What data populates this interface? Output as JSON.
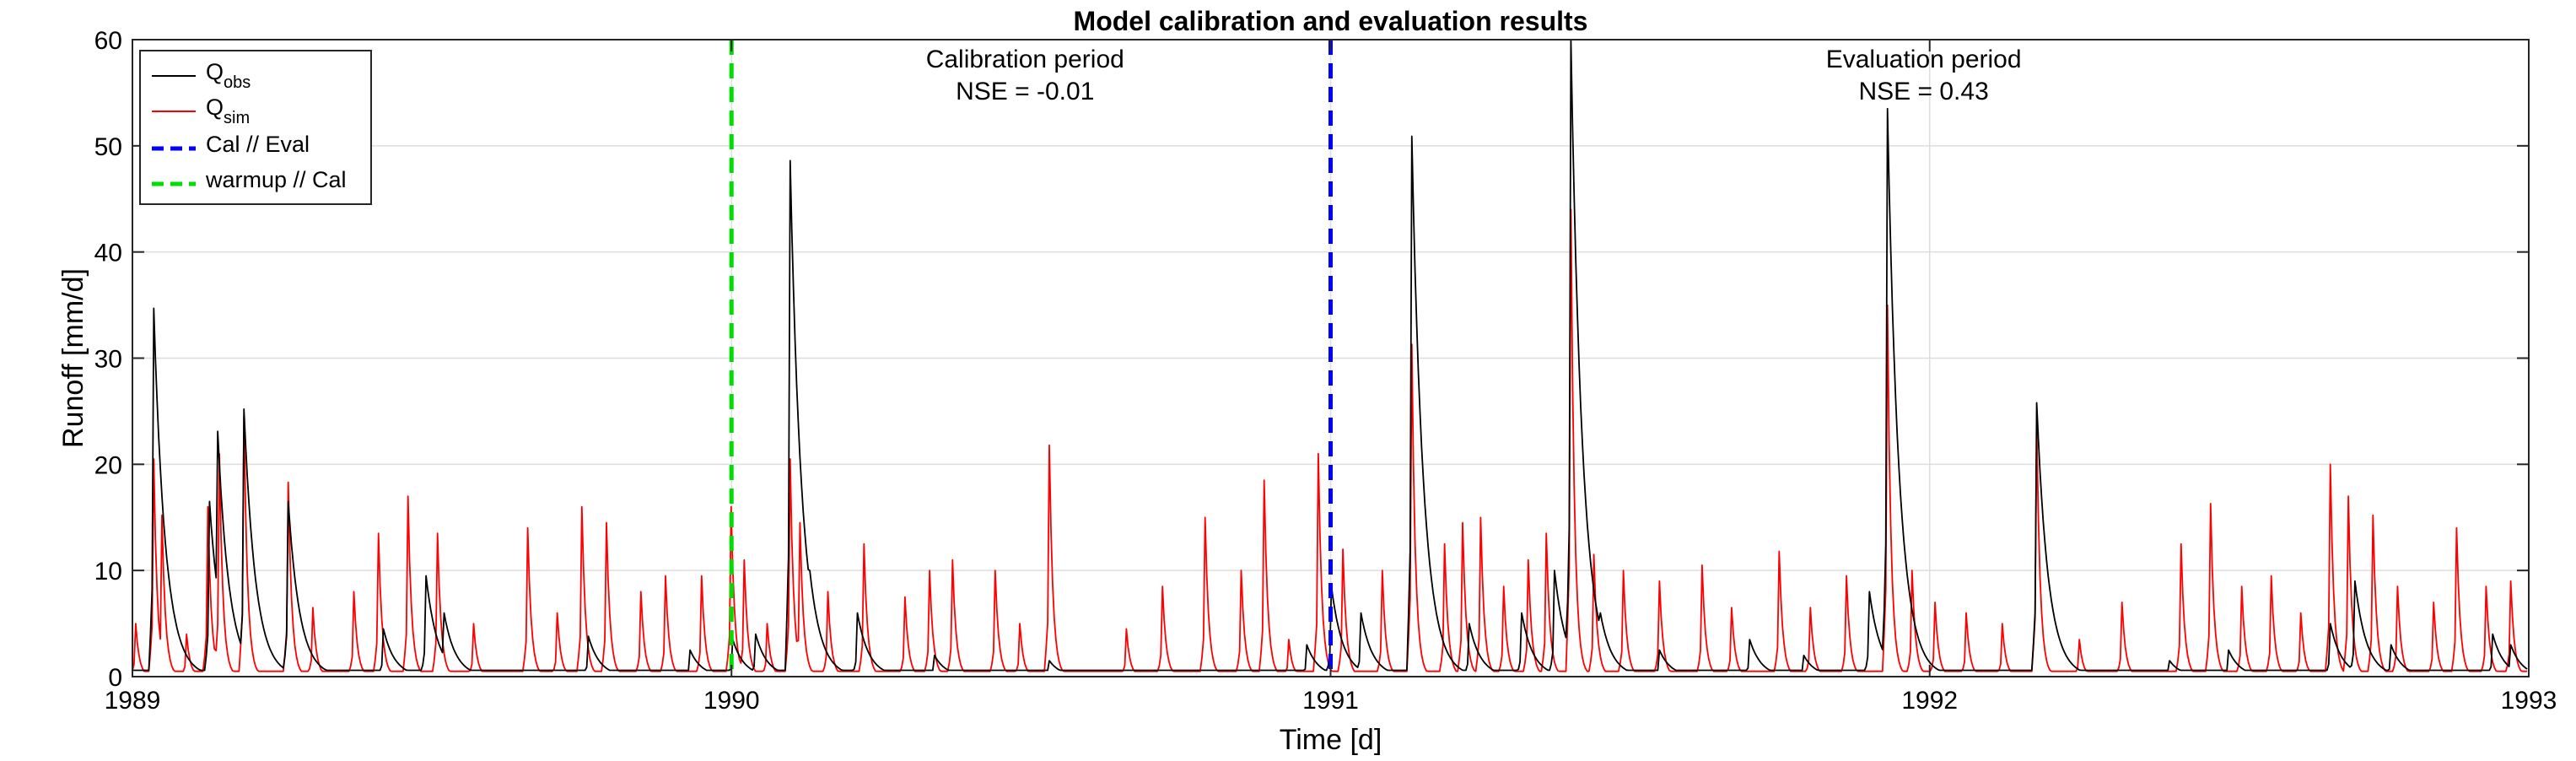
{
  "chart_data": {
    "type": "line",
    "title": "Model calibration and evaluation results",
    "xlabel": "Time [d]",
    "ylabel": "Runoff [mm/d]",
    "xlim": [
      1989,
      1993
    ],
    "ylim": [
      0,
      60
    ],
    "xticks": [
      1989,
      1990,
      1991,
      1992,
      1993
    ],
    "yticks": [
      0,
      10,
      20,
      30,
      40,
      50,
      60
    ],
    "grid": true,
    "legend_position": "top-left",
    "legend": [
      {
        "label": "Q",
        "sub": "obs",
        "color": "#000000",
        "style": "solid"
      },
      {
        "label": "Q",
        "sub": "sim",
        "color": "#ff0000",
        "style": "solid"
      },
      {
        "label": "Cal // Eval",
        "color": "#0000ff",
        "style": "dashed"
      },
      {
        "label": "warmup // Cal",
        "color": "#00dd00",
        "style": "dashed"
      }
    ],
    "annotations": [
      {
        "line1": "Calibration period",
        "line2": "NSE = -0.01",
        "x": 1990.49
      },
      {
        "line1": "Evaluation period",
        "line2": "NSE = 0.43",
        "x": 1991.99
      }
    ],
    "vlines": [
      {
        "name": "warmup // Cal",
        "x": 1990.0,
        "color": "#00dd00"
      },
      {
        "name": "Cal // Eval",
        "x": 1991.0,
        "color": "#0000ff"
      }
    ],
    "series": [
      {
        "name": "Qobs",
        "color": "#000000",
        "baseline": 0.6,
        "peaks": [
          [
            1989.035,
            34.7
          ],
          [
            1989.13,
            16.5
          ],
          [
            1989.142,
            23.1
          ],
          [
            1989.185,
            25.2
          ],
          [
            1989.26,
            16.5
          ],
          [
            1989.42,
            4.5
          ],
          [
            1989.49,
            9.5
          ],
          [
            1989.52,
            6.0
          ],
          [
            1989.76,
            3.8
          ],
          [
            1989.93,
            2.5
          ],
          [
            1990.003,
            3.5
          ],
          [
            1990.04,
            4.0
          ],
          [
            1990.097,
            48.6
          ],
          [
            1990.13,
            10.0
          ],
          [
            1990.21,
            6.0
          ],
          [
            1990.34,
            2.0
          ],
          [
            1990.53,
            1.5
          ],
          [
            1990.96,
            3.0
          ],
          [
            1991.0,
            8.5
          ],
          [
            1991.05,
            6.0
          ],
          [
            1991.135,
            50.9
          ],
          [
            1991.23,
            5.0
          ],
          [
            1991.32,
            6.0
          ],
          [
            1991.375,
            10.0
          ],
          [
            1991.4,
            60.0
          ],
          [
            1991.45,
            6.0
          ],
          [
            1991.55,
            2.5
          ],
          [
            1991.7,
            3.5
          ],
          [
            1991.79,
            2.0
          ],
          [
            1991.9,
            8.0
          ],
          [
            1991.93,
            53.5
          ],
          [
            1991.97,
            3.5
          ],
          [
            1992.18,
            25.8
          ],
          [
            1992.4,
            1.5
          ],
          [
            1992.5,
            2.5
          ],
          [
            1992.67,
            5.0
          ],
          [
            1992.71,
            9.0
          ],
          [
            1992.77,
            3.0
          ],
          [
            1992.94,
            4.0
          ],
          [
            1992.97,
            3.0
          ]
        ]
      },
      {
        "name": "Qsim",
        "color": "#ff0000",
        "baseline": 0.5,
        "peaks": [
          [
            1989.005,
            5.0
          ],
          [
            1989.035,
            20.5
          ],
          [
            1989.05,
            15.2
          ],
          [
            1989.09,
            4.0
          ],
          [
            1989.125,
            16.0
          ],
          [
            1989.145,
            21.0
          ],
          [
            1989.185,
            24.5
          ],
          [
            1989.26,
            18.3
          ],
          [
            1989.3,
            6.5
          ],
          [
            1989.37,
            8.0
          ],
          [
            1989.41,
            13.5
          ],
          [
            1989.46,
            17.0
          ],
          [
            1989.51,
            13.5
          ],
          [
            1989.57,
            5.0
          ],
          [
            1989.66,
            14.0
          ],
          [
            1989.71,
            6.0
          ],
          [
            1989.75,
            16.0
          ],
          [
            1989.79,
            14.5
          ],
          [
            1989.85,
            8.0
          ],
          [
            1989.89,
            9.5
          ],
          [
            1989.95,
            9.5
          ],
          [
            1989.998,
            16.0
          ],
          [
            1990.02,
            11.0
          ],
          [
            1990.06,
            5.0
          ],
          [
            1990.097,
            20.5
          ],
          [
            1990.115,
            14.5
          ],
          [
            1990.16,
            8.0
          ],
          [
            1990.22,
            12.5
          ],
          [
            1990.29,
            7.5
          ],
          [
            1990.33,
            10.0
          ],
          [
            1990.37,
            11.0
          ],
          [
            1990.44,
            10.0
          ],
          [
            1990.48,
            5.0
          ],
          [
            1990.53,
            21.8
          ],
          [
            1990.66,
            4.5
          ],
          [
            1990.72,
            8.5
          ],
          [
            1990.79,
            15.0
          ],
          [
            1990.85,
            10.0
          ],
          [
            1990.89,
            18.5
          ],
          [
            1990.93,
            3.5
          ],
          [
            1990.98,
            21.0
          ],
          [
            1991.02,
            12.0
          ],
          [
            1991.085,
            10.0
          ],
          [
            1991.135,
            31.3
          ],
          [
            1991.19,
            12.5
          ],
          [
            1991.22,
            14.5
          ],
          [
            1991.25,
            15.0
          ],
          [
            1991.29,
            8.5
          ],
          [
            1991.33,
            11.0
          ],
          [
            1991.36,
            13.5
          ],
          [
            1991.4,
            44.0
          ],
          [
            1991.44,
            11.5
          ],
          [
            1991.49,
            10.0
          ],
          [
            1991.55,
            9.0
          ],
          [
            1991.62,
            10.5
          ],
          [
            1991.67,
            6.5
          ],
          [
            1991.75,
            11.8
          ],
          [
            1991.8,
            6.5
          ],
          [
            1991.86,
            9.5
          ],
          [
            1991.93,
            35.0
          ],
          [
            1991.97,
            10.0
          ],
          [
            1992.01,
            7.0
          ],
          [
            1992.06,
            6.0
          ],
          [
            1992.12,
            5.0
          ],
          [
            1992.18,
            23.5
          ],
          [
            1992.25,
            3.5
          ],
          [
            1992.32,
            7.0
          ],
          [
            1992.42,
            12.5
          ],
          [
            1992.47,
            16.3
          ],
          [
            1992.52,
            8.5
          ],
          [
            1992.57,
            9.5
          ],
          [
            1992.62,
            6.0
          ],
          [
            1992.67,
            20.0
          ],
          [
            1992.7,
            17.0
          ],
          [
            1992.74,
            15.2
          ],
          [
            1992.78,
            8.5
          ],
          [
            1992.84,
            7.0
          ],
          [
            1992.88,
            14.0
          ],
          [
            1992.93,
            8.5
          ],
          [
            1992.97,
            9.0
          ]
        ]
      }
    ]
  }
}
